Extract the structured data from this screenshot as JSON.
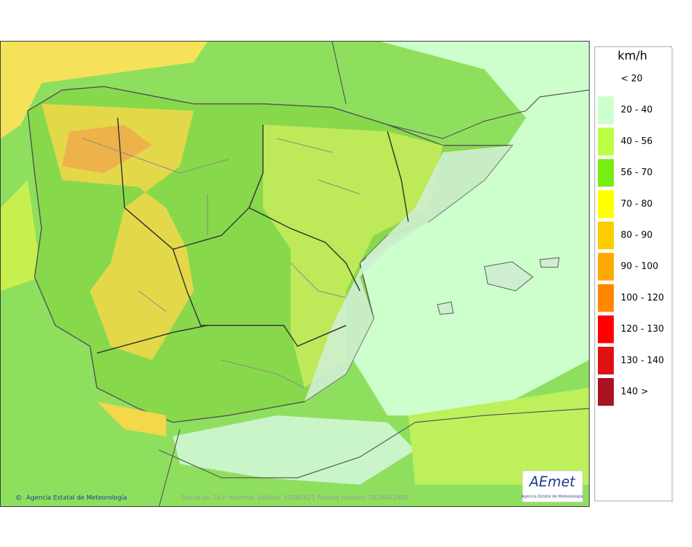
{
  "legend": {
    "unit": "km/h",
    "items": [
      {
        "label": "< 20"
      },
      {
        "label": "20 - 40",
        "color": "#ccffcc"
      },
      {
        "label": "40 - 56",
        "color": "#bbff44"
      },
      {
        "label": "56 - 70",
        "color": "#77ee11"
      },
      {
        "label": "70 - 80",
        "color": "#ffff00"
      },
      {
        "label": "80 - 90",
        "color": "#ffcc00"
      },
      {
        "label": "90 - 100",
        "color": "#ffaa00"
      },
      {
        "label": "100 - 120",
        "color": "#ff8800"
      },
      {
        "label": "120 - 130",
        "color": "#ff0000"
      },
      {
        "label": "130 - 140",
        "color": "#dd1111"
      },
      {
        "label": "140 >",
        "color": "#aa1122"
      }
    ]
  },
  "footer": {
    "credit": "Agencia Estatal de Meteorología",
    "caption": "Racha en 24 h máxima. Validez: 20260421 Pasada modelo: 2026041900"
  },
  "logo": {
    "text": "AEmet",
    "subtitle": "Agencia Estatal de Meteorología"
  }
}
